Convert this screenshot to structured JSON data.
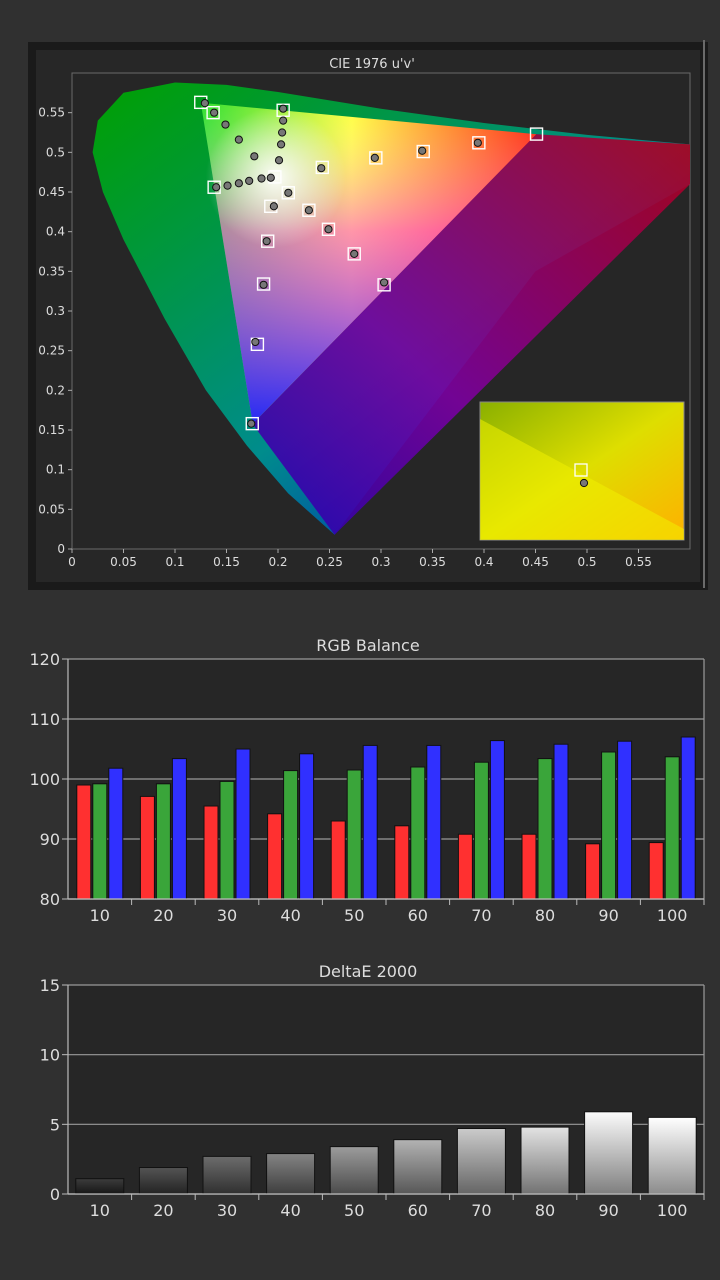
{
  "chart_data": [
    {
      "type": "scatter",
      "title": "CIE 1976 u'v'",
      "xlabel": "",
      "ylabel": "",
      "xlim": [
        0,
        0.6
      ],
      "ylim": [
        0,
        0.6
      ],
      "xticks": [
        "0",
        "0.05",
        "0.1",
        "0.15",
        "0.2",
        "0.25",
        "0.3",
        "0.35",
        "0.4",
        "0.45",
        "0.5",
        "0.55"
      ],
      "yticks": [
        "0",
        "0.05",
        "0.1",
        "0.15",
        "0.2",
        "0.25",
        "0.3",
        "0.35",
        "0.4",
        "0.45",
        "0.5",
        "0.55"
      ],
      "gamut": [
        [
          0.4507,
          0.5229
        ],
        [
          0.125,
          0.5625
        ],
        [
          0.1754,
          0.1579
        ]
      ],
      "white": [
        0.1978,
        0.4683
      ],
      "series": [
        {
          "marker": "square",
          "points": [
            [
              0.125,
              0.563
            ],
            [
              0.137,
              0.55
            ],
            [
              0.205,
              0.553
            ],
            [
              0.243,
              0.481
            ],
            [
              0.295,
              0.493
            ],
            [
              0.341,
              0.501
            ],
            [
              0.395,
              0.512
            ],
            [
              0.451,
              0.523
            ],
            [
              0.21,
              0.449
            ],
            [
              0.23,
              0.427
            ],
            [
              0.249,
              0.403
            ],
            [
              0.274,
              0.372
            ],
            [
              0.303,
              0.333
            ],
            [
              0.197,
              0.469
            ],
            [
              0.138,
              0.456
            ],
            [
              0.193,
              0.432
            ],
            [
              0.19,
              0.388
            ],
            [
              0.186,
              0.334
            ],
            [
              0.18,
              0.258
            ],
            [
              0.175,
              0.158
            ]
          ]
        },
        {
          "marker": "circle",
          "points": [
            [
              0.129,
              0.562
            ],
            [
              0.138,
              0.55
            ],
            [
              0.149,
              0.535
            ],
            [
              0.162,
              0.516
            ],
            [
              0.177,
              0.495
            ],
            [
              0.193,
              0.468
            ],
            [
              0.205,
              0.555
            ],
            [
              0.205,
              0.54
            ],
            [
              0.204,
              0.525
            ],
            [
              0.203,
              0.51
            ],
            [
              0.201,
              0.49
            ],
            [
              0.242,
              0.48
            ],
            [
              0.294,
              0.493
            ],
            [
              0.34,
              0.502
            ],
            [
              0.394,
              0.512
            ],
            [
              0.21,
              0.449
            ],
            [
              0.23,
              0.427
            ],
            [
              0.249,
              0.403
            ],
            [
              0.274,
              0.372
            ],
            [
              0.303,
              0.336
            ],
            [
              0.14,
              0.456
            ],
            [
              0.151,
              0.458
            ],
            [
              0.162,
              0.461
            ],
            [
              0.172,
              0.464
            ],
            [
              0.184,
              0.467
            ],
            [
              0.196,
              0.432
            ],
            [
              0.189,
              0.388
            ],
            [
              0.186,
              0.333
            ],
            [
              0.178,
              0.261
            ],
            [
              0.174,
              0.158
            ]
          ]
        }
      ],
      "inset": true
    },
    {
      "type": "bar",
      "title": "RGB Balance",
      "categories": [
        "10",
        "20",
        "30",
        "40",
        "50",
        "60",
        "70",
        "80",
        "90",
        "100"
      ],
      "ylim": [
        80,
        120
      ],
      "yticks": [
        "80",
        "90",
        "100",
        "110",
        "120"
      ],
      "series": [
        {
          "color": "#ff3030",
          "values": [
            99.0,
            97.1,
            95.5,
            94.2,
            93.0,
            92.2,
            90.8,
            90.8,
            89.2,
            89.4
          ]
        },
        {
          "color": "#3aa53a",
          "values": [
            99.2,
            99.2,
            99.6,
            101.4,
            101.5,
            102.0,
            102.8,
            103.4,
            104.5,
            103.7
          ]
        },
        {
          "color": "#3030ff",
          "values": [
            101.8,
            103.4,
            105.0,
            104.2,
            105.6,
            105.6,
            106.4,
            105.8,
            106.3,
            107.0
          ]
        }
      ]
    },
    {
      "type": "bar",
      "title": "DeltaE 2000",
      "categories": [
        "10",
        "20",
        "30",
        "40",
        "50",
        "60",
        "70",
        "80",
        "90",
        "100"
      ],
      "ylim": [
        0,
        15
      ],
      "yticks": [
        "0",
        "5",
        "10",
        "15"
      ],
      "values": [
        1.1,
        1.9,
        2.7,
        2.9,
        3.4,
        3.9,
        4.7,
        4.8,
        5.9,
        5.5
      ]
    }
  ]
}
